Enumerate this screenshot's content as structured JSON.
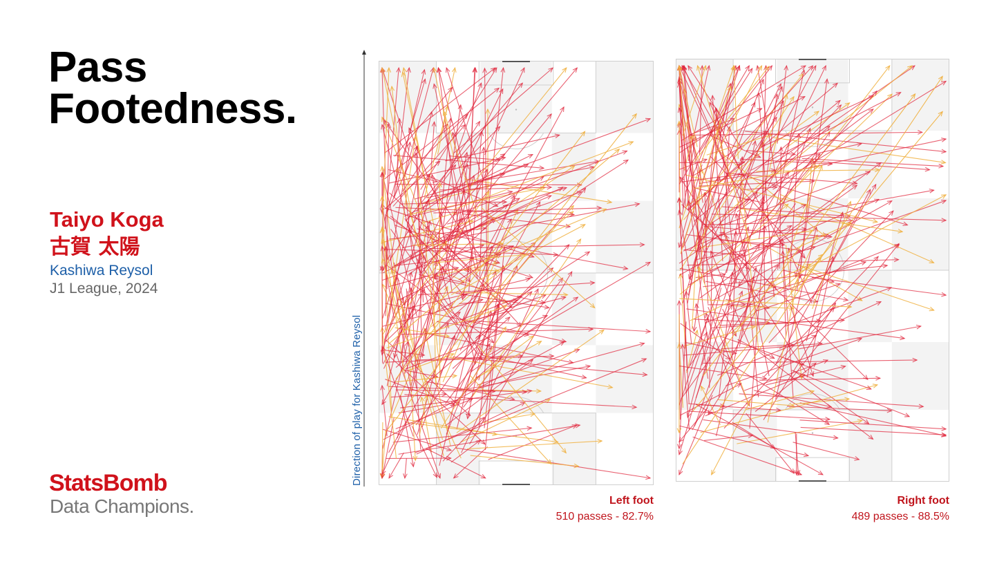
{
  "title": {
    "line1": "Pass",
    "line2": "Footedness."
  },
  "player": {
    "name": "Taiyo Koga",
    "name_jp": "古賀 太陽",
    "team": "Kashiwa Reysol",
    "league": "J1 League, 2024"
  },
  "brand": {
    "name": "StatsBomb",
    "tagline": "Data Champions."
  },
  "axis": {
    "direction_label": "Direction of play for Kashiwa Reysol"
  },
  "colors": {
    "accent": "#d0121b",
    "team_blue": "#1d5fa8",
    "pass_primary": "#e0243a",
    "pass_secondary": "#f0b040",
    "pitch_shade": "#f3f3f3",
    "pitch_line": "#cfcfcf"
  },
  "chart_data": [
    {
      "type": "scatter",
      "subtype": "pass-map",
      "panel": "left",
      "label": "Left foot",
      "stats": "510 passes - 82.7%",
      "passes": 510,
      "completion_pct": 82.7,
      "x_range": [
        0,
        80
      ],
      "y_range": [
        0,
        120
      ],
      "origin_zone": {
        "x": [
          1,
          32
        ],
        "y": [
          5,
          95
        ]
      },
      "arrow_sample": [
        {
          "x": [
            3,
            70
          ],
          "y": [
            40,
            95
          ]
        },
        {
          "x": [
            2,
            75
          ],
          "y": [
            15,
            105
          ]
        },
        {
          "x": [
            5,
            60
          ],
          "y": [
            30,
            100
          ]
        }
      ]
    },
    {
      "type": "scatter",
      "subtype": "pass-map",
      "panel": "right",
      "label": "Right foot",
      "stats": "489 passes - 88.5%",
      "passes": 489,
      "completion_pct": 88.5,
      "x_range": [
        0,
        80
      ],
      "y_range": [
        0,
        120
      ],
      "origin_zone": {
        "x": [
          1,
          40
        ],
        "y": [
          10,
          100
        ]
      },
      "arrow_sample": [
        {
          "x": [
            2,
            78
          ],
          "y": [
            5,
            115
          ]
        },
        {
          "x": [
            5,
            78
          ],
          "y": [
            20,
            105
          ]
        },
        {
          "x": [
            8,
            70
          ],
          "y": [
            30,
            110
          ]
        }
      ]
    }
  ]
}
